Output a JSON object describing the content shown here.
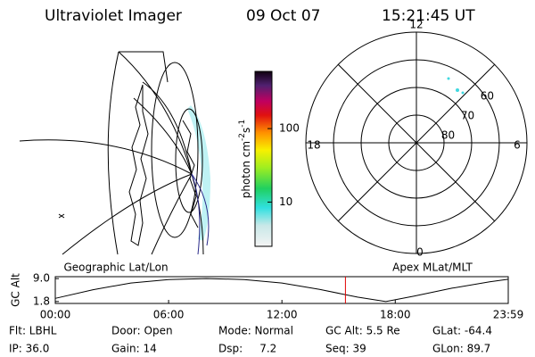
{
  "header": {
    "instrument": "Ultraviolet Imager",
    "date": "09 Oct 07",
    "time": "15:21:45 UT"
  },
  "colorbar": {
    "label": "photon cm",
    "exp1": "-2",
    "unit2": "s",
    "exp2": "-1",
    "scale": "log",
    "lim": [
      2.5,
      600
    ],
    "ticks": [
      10,
      100
    ]
  },
  "polar": {
    "hour_labels": [
      "12",
      "18",
      "6",
      "0"
    ],
    "lat_labels": [
      80,
      70,
      60
    ]
  },
  "altitude_plot": {
    "left_title": "Geographic Lat/Lon",
    "right_title": "Apex MLat/MLT",
    "ylabel": "GC Alt",
    "ylim": [
      1.2,
      9.6
    ],
    "yticks": [
      {
        "value": 9,
        "label": "9.0"
      },
      1.8
    ],
    "xlim": [
      0,
      23.983
    ],
    "xticks": [
      {
        "value": 0,
        "label": "00:00"
      },
      {
        "value": 6,
        "label": "06:00"
      },
      {
        "value": 12,
        "label": "12:00"
      },
      {
        "value": 18,
        "label": "18:00"
      },
      {
        "value": 23.983,
        "label": "23:59"
      }
    ],
    "x": [
      0,
      2,
      4,
      6,
      8,
      10,
      12,
      14,
      16,
      17.5,
      19,
      21,
      23,
      23.983
    ],
    "values": [
      2.8,
      5.5,
      7.6,
      8.7,
      9.0,
      8.7,
      7.6,
      5.6,
      3.2,
      1.8,
      3.5,
      6.0,
      8.0,
      8.8
    ],
    "marker": 15.3625,
    "marker_color": "#e00000"
  },
  "info": {
    "rows": [
      [
        "Flt: LBHL",
        "Door: Open",
        "Mode: Normal",
        "GC Alt: 5.5 Re",
        "GLat: -64.4"
      ],
      [
        "IP: 36.0",
        "Gain: 14",
        "Dsp:     7.2",
        "Seq: 39",
        "GLon: 89.7"
      ]
    ]
  }
}
